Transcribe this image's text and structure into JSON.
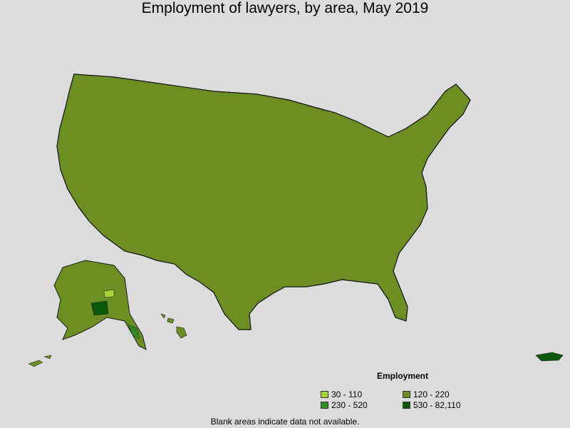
{
  "title": "Employment of lawyers, by area, May 2019",
  "legend": {
    "title": "Employment",
    "items": [
      {
        "label": "30 - 110",
        "color": "#a6d13a"
      },
      {
        "label": "120 - 220",
        "color": "#6b8f22"
      },
      {
        "label": "230 - 520",
        "color": "#2f8a22"
      },
      {
        "label": "530 - 82,110",
        "color": "#0b5a0b"
      }
    ]
  },
  "footnote": "Blank areas indicate data not available.",
  "colors": {
    "background": "#dcdcdc",
    "no_data": "#ffffff",
    "border": "#1a1a1a"
  }
}
